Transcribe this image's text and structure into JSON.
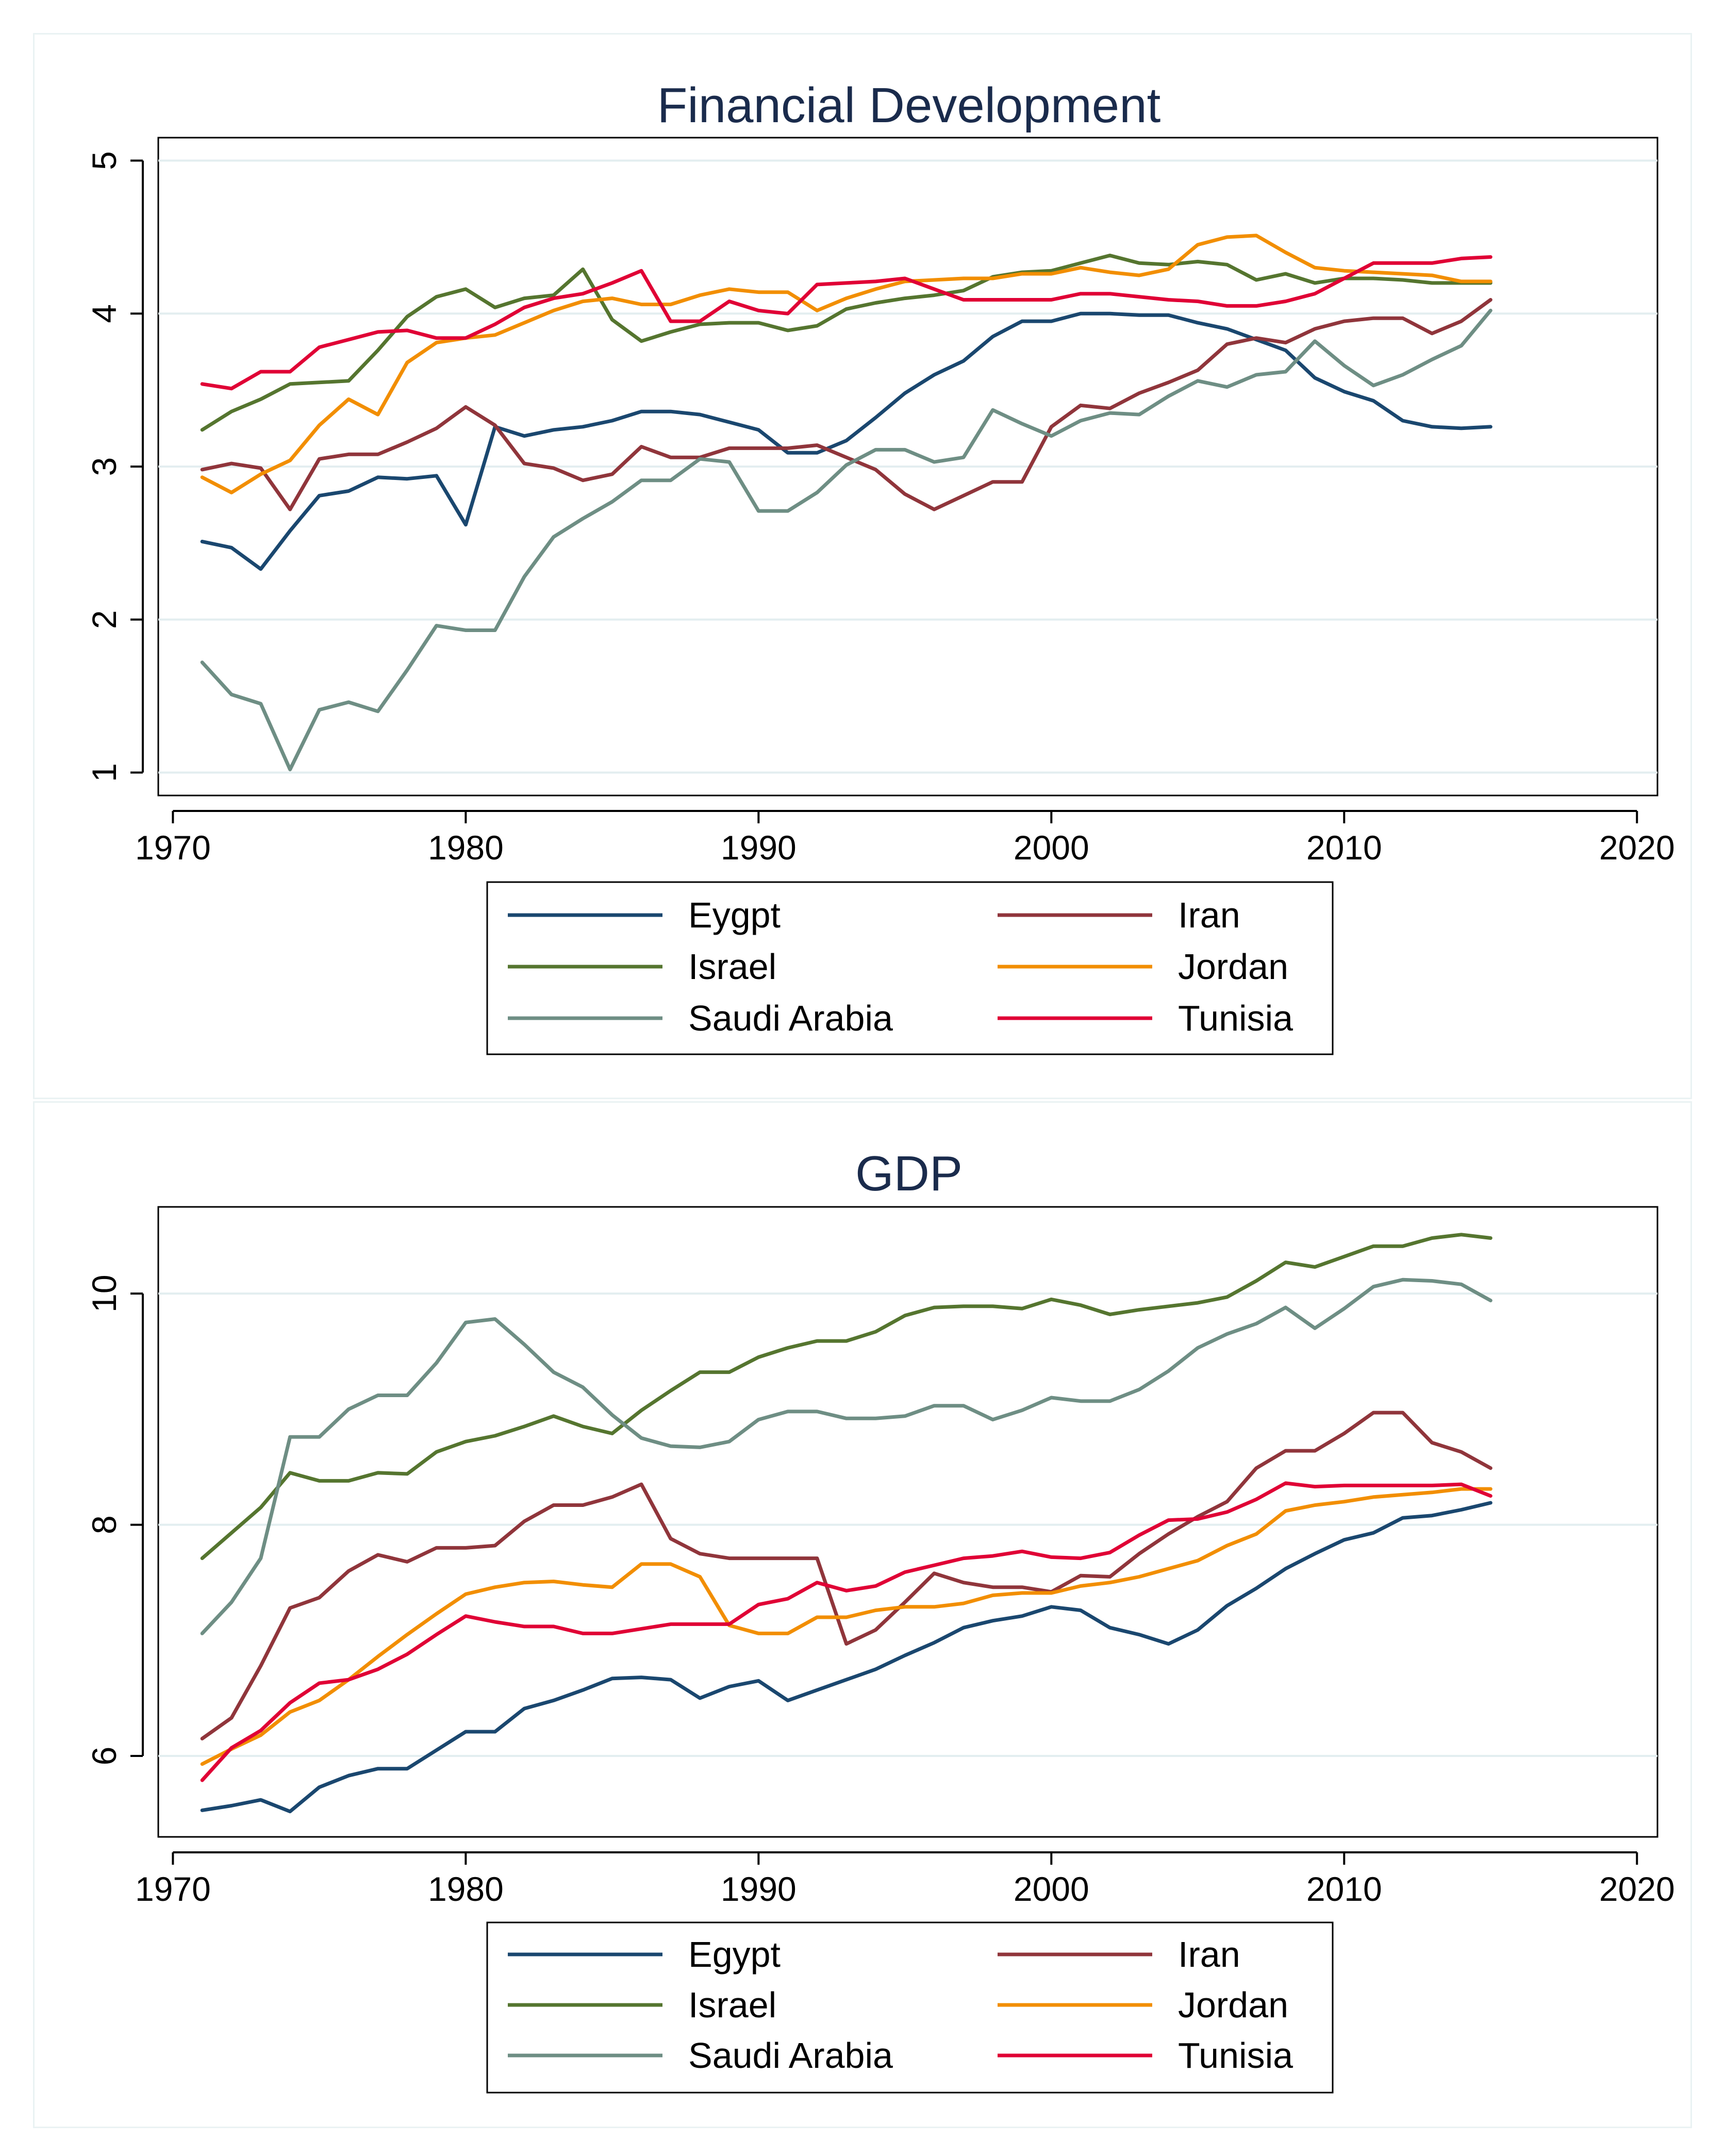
{
  "colors": {
    "Egypt": "#1a476f",
    "Iran": "#90353b",
    "Israel": "#55752f",
    "Jordan": "#f28e00",
    "Saudi Arabia": "#6e8e84",
    "Tunisia": "#e00035"
  },
  "chart_data": [
    {
      "type": "line",
      "title": "Financial Development",
      "xlabel": "",
      "ylabel": "",
      "xlim": [
        1969.5,
        2020.7
      ],
      "ylim": [
        0.85,
        5.15
      ],
      "xticks": [
        1970,
        1980,
        1990,
        2000,
        2010,
        2020
      ],
      "yticks": [
        1,
        2,
        3,
        4,
        5
      ],
      "grid": true,
      "legend_position": "bottom",
      "x": [
        1971,
        1972,
        1973,
        1974,
        1975,
        1976,
        1977,
        1978,
        1979,
        1980,
        1981,
        1982,
        1983,
        1984,
        1985,
        1986,
        1987,
        1988,
        1989,
        1990,
        1991,
        1992,
        1993,
        1994,
        1995,
        1996,
        1997,
        1998,
        1999,
        2000,
        2001,
        2002,
        2003,
        2004,
        2005,
        2006,
        2007,
        2008,
        2009,
        2010,
        2011,
        2012,
        2013,
        2014,
        2015
      ],
      "series": [
        {
          "name": "Eygpt",
          "color_key": "Egypt",
          "values": [
            2.51,
            2.47,
            2.33,
            2.58,
            2.81,
            2.84,
            2.93,
            2.92,
            2.94,
            2.62,
            3.26,
            3.2,
            3.24,
            3.26,
            3.3,
            3.36,
            3.36,
            3.34,
            3.29,
            3.24,
            3.09,
            3.09,
            3.17,
            3.32,
            3.48,
            3.6,
            3.69,
            3.85,
            3.95,
            3.95,
            4.0,
            4.0,
            3.99,
            3.99,
            3.94,
            3.9,
            3.83,
            3.76,
            3.58,
            3.49,
            3.43,
            3.3,
            3.26,
            3.25,
            3.26
          ]
        },
        {
          "name": "Iran",
          "color_key": "Iran",
          "values": [
            2.98,
            3.02,
            2.99,
            2.72,
            3.05,
            3.08,
            3.08,
            3.16,
            3.25,
            3.39,
            3.27,
            3.02,
            2.99,
            2.91,
            2.95,
            3.13,
            3.06,
            3.06,
            3.12,
            3.12,
            3.12,
            3.14,
            3.06,
            2.98,
            2.82,
            2.72,
            2.81,
            2.9,
            2.9,
            3.26,
            3.4,
            3.38,
            3.48,
            3.55,
            3.63,
            3.8,
            3.84,
            3.81,
            3.9,
            3.95,
            3.97,
            3.97,
            3.87,
            3.95,
            4.09
          ]
        },
        {
          "name": "Israel",
          "color_key": "Israel",
          "values": [
            3.24,
            3.36,
            3.44,
            3.54,
            3.55,
            3.56,
            3.76,
            3.98,
            4.11,
            4.16,
            4.04,
            4.1,
            4.12,
            4.29,
            3.96,
            3.82,
            3.88,
            3.93,
            3.94,
            3.94,
            3.89,
            3.92,
            4.03,
            4.07,
            4.1,
            4.12,
            4.15,
            4.24,
            4.27,
            4.28,
            4.33,
            4.38,
            4.33,
            4.32,
            4.34,
            4.32,
            4.22,
            4.26,
            4.2,
            4.23,
            4.23,
            4.22,
            4.2,
            4.2,
            4.2
          ]
        },
        {
          "name": "Jordan",
          "color_key": "Jordan",
          "values": [
            2.93,
            2.83,
            2.95,
            3.04,
            3.27,
            3.44,
            3.34,
            3.68,
            3.81,
            3.84,
            3.86,
            3.94,
            4.02,
            4.08,
            4.1,
            4.06,
            4.06,
            4.12,
            4.16,
            4.14,
            4.14,
            4.02,
            4.1,
            4.16,
            4.21,
            4.22,
            4.23,
            4.23,
            4.26,
            4.26,
            4.3,
            4.27,
            4.25,
            4.29,
            4.45,
            4.5,
            4.51,
            4.4,
            4.3,
            4.28,
            4.27,
            4.26,
            4.25,
            4.21,
            4.21
          ]
        },
        {
          "name": "Saudi Arabia",
          "color_key": "Saudi Arabia",
          "values": [
            1.72,
            1.51,
            1.45,
            1.02,
            1.41,
            1.46,
            1.4,
            1.67,
            1.96,
            1.93,
            1.93,
            2.28,
            2.54,
            2.66,
            2.77,
            2.91,
            2.91,
            3.05,
            3.03,
            2.71,
            2.71,
            2.83,
            3.01,
            3.11,
            3.11,
            3.03,
            3.06,
            3.37,
            3.28,
            3.2,
            3.3,
            3.35,
            3.34,
            3.46,
            3.56,
            3.52,
            3.6,
            3.62,
            3.82,
            3.66,
            3.53,
            3.6,
            3.7,
            3.79,
            4.02
          ]
        },
        {
          "name": "Tunisia",
          "color_key": "Tunisia",
          "values": [
            3.54,
            3.51,
            3.62,
            3.62,
            3.78,
            3.83,
            3.88,
            3.89,
            3.84,
            3.84,
            3.93,
            4.04,
            4.1,
            4.13,
            4.2,
            4.28,
            3.95,
            3.95,
            4.08,
            4.02,
            4.0,
            4.19,
            4.2,
            4.21,
            4.23,
            4.16,
            4.09,
            4.09,
            4.09,
            4.09,
            4.13,
            4.13,
            4.11,
            4.09,
            4.08,
            4.05,
            4.05,
            4.08,
            4.13,
            4.23,
            4.33,
            4.33,
            4.33,
            4.36,
            4.37
          ]
        }
      ]
    },
    {
      "type": "line",
      "title": "GDP",
      "xlabel": "",
      "ylabel": "",
      "xlim": [
        1969.5,
        2020.7
      ],
      "ylim": [
        5.3,
        10.75
      ],
      "xticks": [
        1970,
        1980,
        1990,
        2000,
        2010,
        2020
      ],
      "yticks": [
        6,
        8,
        10
      ],
      "grid": true,
      "legend_position": "bottom",
      "x": [
        1971,
        1972,
        1973,
        1974,
        1975,
        1976,
        1977,
        1978,
        1979,
        1980,
        1981,
        1982,
        1983,
        1984,
        1985,
        1986,
        1987,
        1988,
        1989,
        1990,
        1991,
        1992,
        1993,
        1994,
        1995,
        1996,
        1997,
        1998,
        1999,
        2000,
        2001,
        2002,
        2003,
        2004,
        2005,
        2006,
        2007,
        2008,
        2009,
        2010,
        2011,
        2012,
        2013,
        2014,
        2015
      ],
      "series": [
        {
          "name": "Egypt",
          "color_key": "Egypt",
          "values": [
            5.53,
            5.57,
            5.62,
            5.52,
            5.73,
            5.83,
            5.89,
            5.89,
            6.05,
            6.21,
            6.21,
            6.41,
            6.48,
            6.57,
            6.67,
            6.68,
            6.66,
            6.5,
            6.6,
            6.65,
            6.48,
            6.57,
            6.66,
            6.75,
            6.87,
            6.98,
            7.11,
            7.17,
            7.21,
            7.29,
            7.26,
            7.11,
            7.05,
            6.97,
            7.09,
            7.3,
            7.45,
            7.62,
            7.75,
            7.87,
            7.93,
            8.06,
            8.08,
            8.13,
            8.19
          ]
        },
        {
          "name": "Iran",
          "color_key": "Iran",
          "values": [
            6.15,
            6.33,
            6.78,
            7.28,
            7.37,
            7.6,
            7.74,
            7.68,
            7.8,
            7.8,
            7.82,
            8.03,
            8.17,
            8.17,
            8.24,
            8.35,
            7.88,
            7.75,
            7.71,
            7.71,
            7.71,
            7.71,
            6.97,
            7.09,
            7.33,
            7.58,
            7.5,
            7.46,
            7.46,
            7.42,
            7.56,
            7.55,
            7.75,
            7.92,
            8.07,
            8.2,
            8.49,
            8.64,
            8.64,
            8.79,
            8.97,
            8.97,
            8.71,
            8.63,
            8.49
          ]
        },
        {
          "name": "Israel",
          "color_key": "Israel",
          "values": [
            7.71,
            7.93,
            8.15,
            8.45,
            8.38,
            8.38,
            8.45,
            8.44,
            8.63,
            8.72,
            8.77,
            8.85,
            8.94,
            8.85,
            8.79,
            8.99,
            9.16,
            9.32,
            9.32,
            9.45,
            9.53,
            9.59,
            9.59,
            9.67,
            9.81,
            9.88,
            9.89,
            9.89,
            9.87,
            9.95,
            9.9,
            9.82,
            9.86,
            9.89,
            9.92,
            9.97,
            10.11,
            10.27,
            10.23,
            10.32,
            10.41,
            10.41,
            10.48,
            10.51,
            10.48
          ]
        },
        {
          "name": "Jordan",
          "color_key": "Jordan",
          "values": [
            5.93,
            6.06,
            6.18,
            6.38,
            6.48,
            6.66,
            6.86,
            7.05,
            7.23,
            7.4,
            7.46,
            7.5,
            7.51,
            7.48,
            7.46,
            7.66,
            7.66,
            7.55,
            7.13,
            7.06,
            7.06,
            7.2,
            7.2,
            7.26,
            7.29,
            7.29,
            7.32,
            7.39,
            7.41,
            7.41,
            7.47,
            7.5,
            7.55,
            7.62,
            7.69,
            7.82,
            7.92,
            8.12,
            8.17,
            8.2,
            8.24,
            8.26,
            8.28,
            8.31,
            8.31
          ]
        },
        {
          "name": "Saudi Arabia",
          "color_key": "Saudi Arabia",
          "values": [
            7.06,
            7.33,
            7.71,
            8.76,
            8.76,
            9.0,
            9.12,
            9.12,
            9.4,
            9.75,
            9.78,
            9.56,
            9.32,
            9.19,
            8.95,
            8.75,
            8.68,
            8.67,
            8.72,
            8.91,
            8.98,
            8.98,
            8.92,
            8.92,
            8.94,
            9.03,
            9.03,
            8.91,
            8.99,
            9.1,
            9.07,
            9.07,
            9.17,
            9.33,
            9.53,
            9.65,
            9.74,
            9.88,
            9.7,
            9.87,
            10.06,
            10.12,
            10.11,
            10.08,
            9.94
          ]
        },
        {
          "name": "Tunisia",
          "color_key": "Tunisia",
          "values": [
            5.79,
            6.07,
            6.22,
            6.46,
            6.63,
            6.66,
            6.75,
            6.88,
            7.05,
            7.21,
            7.16,
            7.12,
            7.12,
            7.06,
            7.06,
            7.1,
            7.14,
            7.14,
            7.14,
            7.31,
            7.36,
            7.5,
            7.43,
            7.47,
            7.59,
            7.65,
            7.71,
            7.73,
            7.77,
            7.72,
            7.71,
            7.76,
            7.91,
            8.04,
            8.05,
            8.11,
            8.22,
            8.36,
            8.33,
            8.34,
            8.34,
            8.34,
            8.34,
            8.35,
            8.25
          ]
        }
      ]
    }
  ],
  "legends": [
    {
      "items": [
        {
          "label": "Eygpt",
          "color_key": "Egypt"
        },
        {
          "label": "Iran",
          "color_key": "Iran"
        },
        {
          "label": "Israel",
          "color_key": "Israel"
        },
        {
          "label": "Jordan",
          "color_key": "Jordan"
        },
        {
          "label": "Saudi Arabia",
          "color_key": "Saudi Arabia"
        },
        {
          "label": "Tunisia",
          "color_key": "Tunisia"
        }
      ]
    },
    {
      "items": [
        {
          "label": "Egypt",
          "color_key": "Egypt"
        },
        {
          "label": "Iran",
          "color_key": "Iran"
        },
        {
          "label": "Israel",
          "color_key": "Israel"
        },
        {
          "label": "Jordan",
          "color_key": "Jordan"
        },
        {
          "label": "Saudi Arabia",
          "color_key": "Saudi Arabia"
        },
        {
          "label": "Tunisia",
          "color_key": "Tunisia"
        }
      ]
    }
  ]
}
